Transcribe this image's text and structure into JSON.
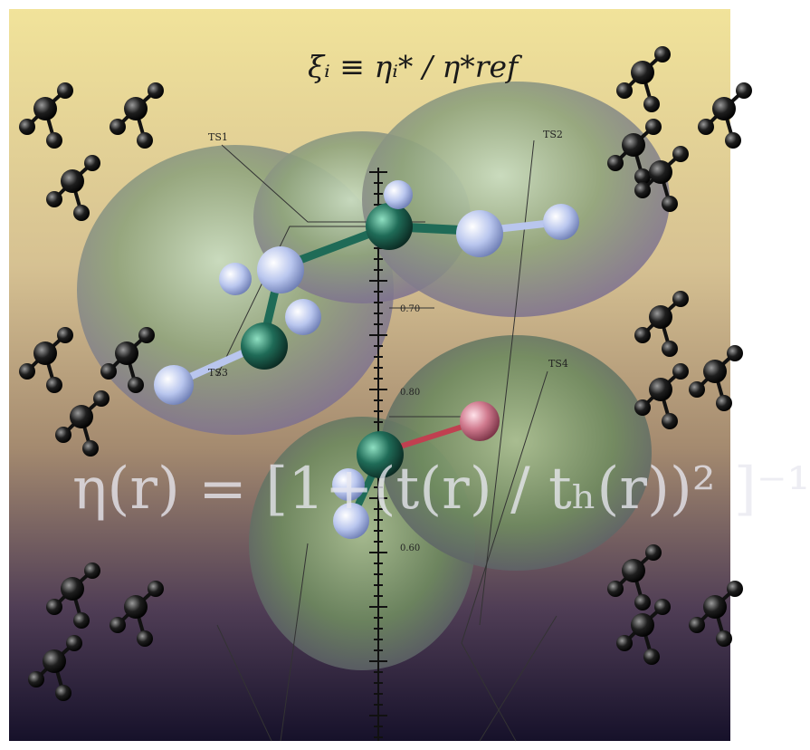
{
  "equations": {
    "top": "ξᵢ ≡ ηᵢ* / η*ref",
    "main": "η(r) = [1+(t(r) / tₕ(r))² ]⁻¹"
  },
  "labels": {
    "ts1": "TS1",
    "ts2": "TS2",
    "ts3": "TS3",
    "ts4": "TS4"
  },
  "axis_ticks": [
    "0.70",
    "0.80",
    "0.60"
  ],
  "colors": {
    "bg_top": "#f1e39a",
    "bg_mid": "#a48a6f",
    "bg_bottom": "#16112a",
    "surface": "#8fa37c",
    "carbon_atom": "#1f6b57",
    "hydrogen_atom": "#b9c6ee",
    "oxygen_atom": "#d07a8e"
  }
}
